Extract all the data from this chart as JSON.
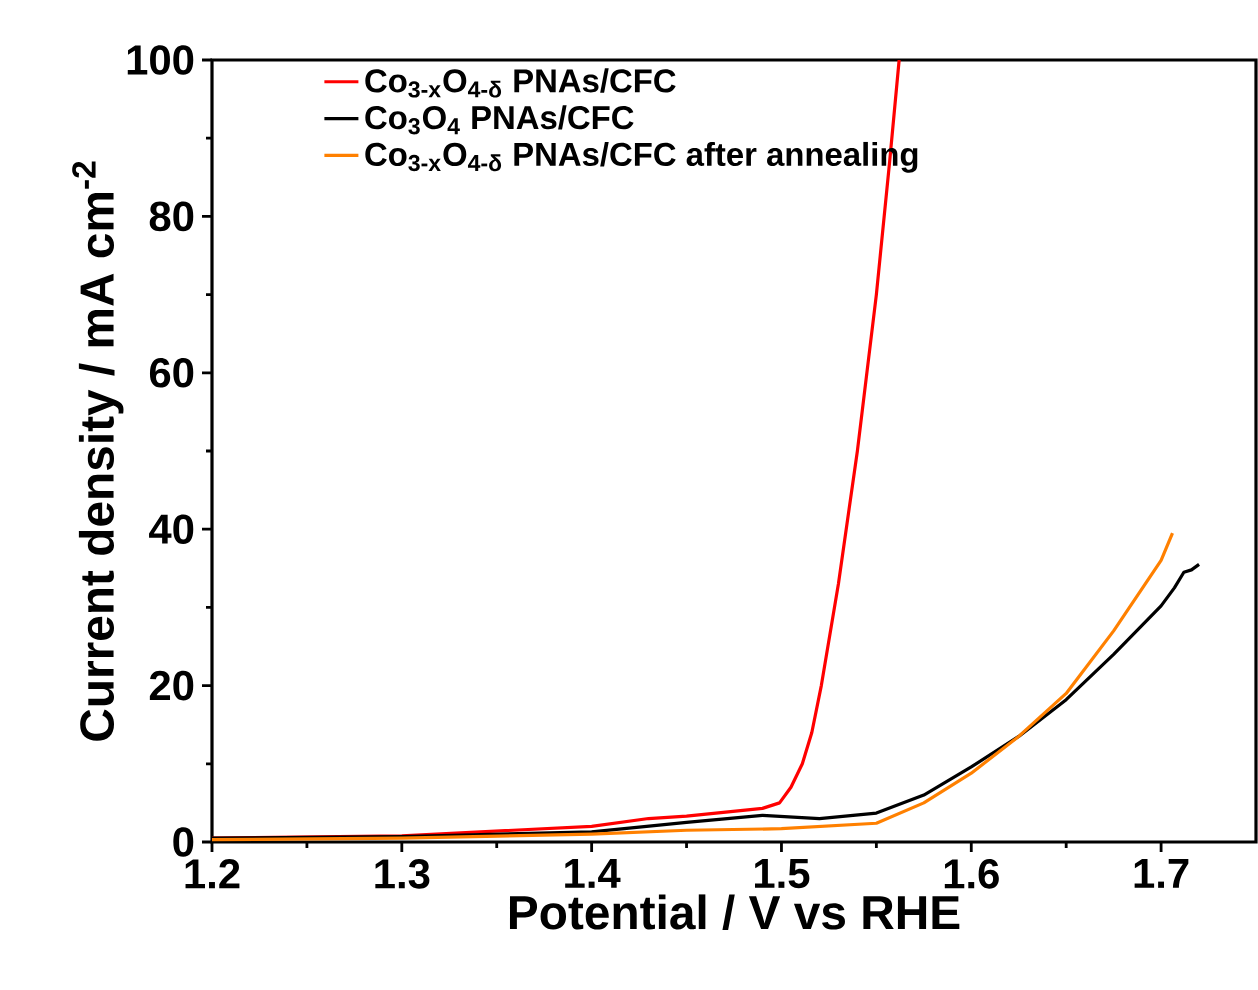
{
  "chart_data": {
    "type": "line",
    "xlabel": "Potential / V vs RHE",
    "ylabel": "Current density / mA cm$^{-2}$",
    "xlim": [
      1.2,
      1.75
    ],
    "ylim": [
      0,
      100
    ],
    "xticks": [
      1.2,
      1.3,
      1.4,
      1.5,
      1.6,
      1.7
    ],
    "yticks": [
      0,
      20,
      40,
      60,
      80,
      100
    ],
    "legend": "top left",
    "marker": "none",
    "line_style": "solid",
    "series": [
      {
        "name": "Co$_{3-x}$O$_{4-δ}$ PNAs/CFC",
        "color": "#ff0000",
        "x": [
          1.2,
          1.3,
          1.4,
          1.43,
          1.45,
          1.49,
          1.499,
          1.505,
          1.511,
          1.516,
          1.521,
          1.53,
          1.54,
          1.55,
          1.557,
          1.562
        ],
        "values": [
          0.5,
          0.8,
          2.0,
          3.0,
          3.3,
          4.3,
          5,
          7,
          10,
          14,
          20,
          33,
          50,
          70,
          87,
          100
        ]
      },
      {
        "name": "Co$_{3}$O$_{4}$ PNAs/CFC",
        "color": "#000000",
        "x": [
          1.2,
          1.3,
          1.4,
          1.45,
          1.49,
          1.52,
          1.55,
          1.575,
          1.6,
          1.625,
          1.65,
          1.675,
          1.7,
          1.707,
          1.712,
          1.716,
          1.72
        ],
        "values": [
          0.5,
          0.7,
          1.3,
          2.5,
          3.4,
          3.0,
          3.7,
          6,
          9.6,
          13.5,
          18.2,
          24,
          30.2,
          32.5,
          34.5,
          34.8,
          35.5
        ]
      },
      {
        "name": "Co$_{3-x}$O$_{4-δ}$ PNAs/CFC after annealing",
        "color": "#ff8000",
        "x": [
          1.2,
          1.3,
          1.4,
          1.45,
          1.5,
          1.55,
          1.575,
          1.6,
          1.625,
          1.65,
          1.675,
          1.7,
          1.706
        ],
        "values": [
          0.3,
          0.5,
          1.0,
          1.5,
          1.7,
          2.4,
          5,
          8.8,
          13.5,
          19,
          27,
          36,
          39.5
        ]
      }
    ]
  }
}
